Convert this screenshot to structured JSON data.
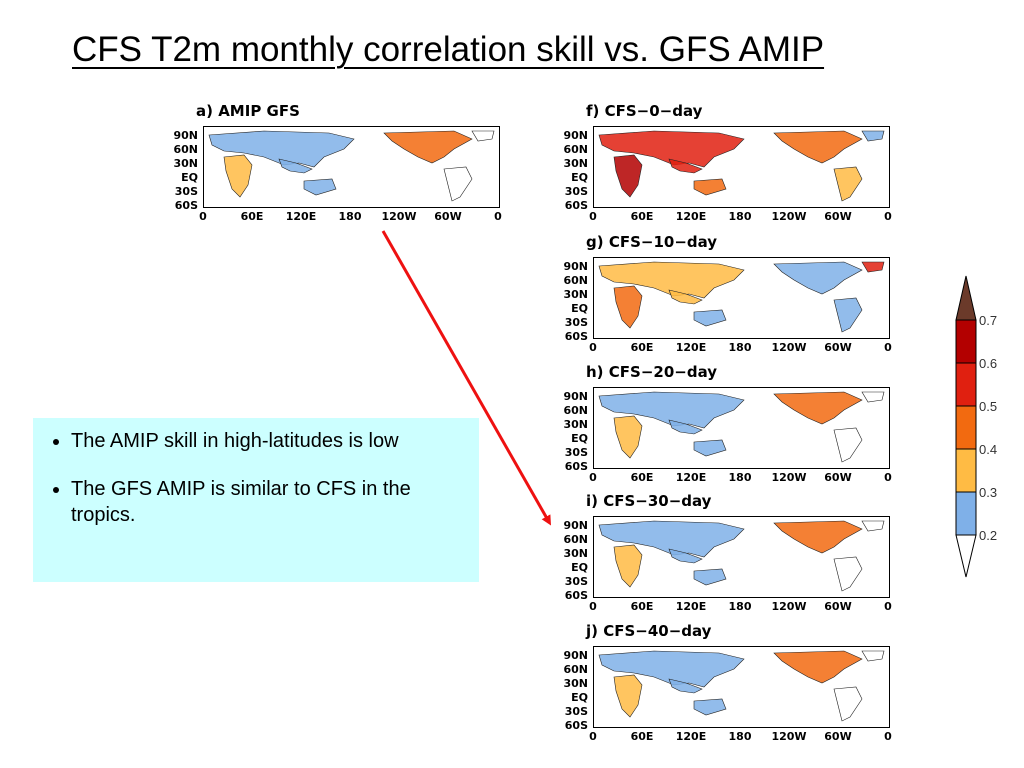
{
  "slide": {
    "title": "CFS T2m monthly correlation skill vs. GFS AMIP"
  },
  "axes": {
    "lat_labels": [
      "90N",
      "60N",
      "30N",
      "EQ",
      "30S",
      "60S"
    ],
    "lon_labels": [
      "0",
      "60E",
      "120E",
      "180",
      "120W",
      "60W",
      "0"
    ]
  },
  "panels": [
    {
      "id": "a",
      "title": "a) AMIP GFS",
      "skill": "low"
    },
    {
      "id": "f",
      "title": "f) CFS−0−day",
      "skill": "high"
    },
    {
      "id": "g",
      "title": "g) CFS−10−day",
      "skill": "medium"
    },
    {
      "id": "h",
      "title": "h) CFS−20−day",
      "skill": "low"
    },
    {
      "id": "i",
      "title": "i) CFS−30−day",
      "skill": "low"
    },
    {
      "id": "j",
      "title": "j) CFS−40−day",
      "skill": "low"
    }
  ],
  "notes": [
    "The AMIP skill in high-latitudes is low",
    "The GFS AMIP is similar to CFS in the tropics."
  ],
  "colorbar": {
    "labels": [
      "0.7",
      "0.6",
      "0.5",
      "0.4",
      "0.3",
      "0.2"
    ],
    "colors": [
      "#6b3a2a",
      "#b30000",
      "#e02010",
      "#f26a10",
      "#ffbb44",
      "#7fb0e8",
      "#ffffff"
    ]
  },
  "arrow": {
    "color": "#ee1111",
    "from": "a",
    "to": "i"
  },
  "colors": {
    "land_outline": "#222222",
    "box_bg": "#ccffff"
  }
}
